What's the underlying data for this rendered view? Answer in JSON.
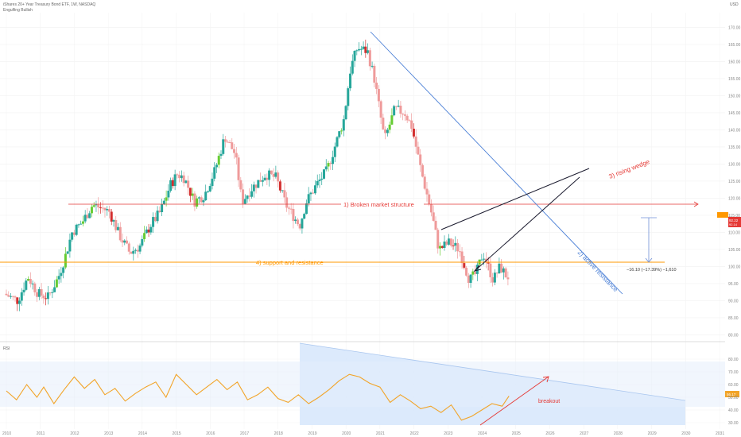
{
  "header": {
    "symbol_line": "iShares 20+ Year Treasury Bond ETF, 1W, NASDAQ",
    "indicator_line": "Engulfing Bullish",
    "currency": "USD"
  },
  "price_badge": "92.22",
  "price_badge_sub": "92.14",
  "rsi_label": "RSI",
  "rsi_badge": "56.17",
  "annotations": {
    "broken_structure": "1) Broken market structure",
    "active_resistance": "2) active resistance",
    "rising_wedge": "3) rising wedge",
    "support_resistance": "4) support and resistance",
    "measure": "−16.10 (−17.39%) −1,610",
    "breakout": "breakout"
  },
  "colors": {
    "bull": "#26a69a",
    "bull_light": "#8fd6b2",
    "bull_green": "#66cc33",
    "bear": "#ef9a9a",
    "bear_strong": "#d32f2f",
    "rsi_line": "#f2a428",
    "broken_structure": "#e53935",
    "support": "#ff9800",
    "resistance": "#4a7fd6",
    "wedge": "#1a1a2e",
    "channel_fill": "#d6e6fb",
    "measure": "#6f8fd6",
    "breakout": "#e53935"
  },
  "chart_data": [
    {
      "type": "candlestick",
      "title": "",
      "x_range": [
        2010.0,
        2031.0
      ],
      "x_ticks": [
        "2010",
        "2011",
        "2012",
        "2013",
        "2014",
        "2015",
        "2016",
        "2017",
        "2018",
        "2019",
        "2020",
        "2021",
        "2022",
        "2023",
        "2024",
        "2025",
        "2026",
        "2027",
        "2028",
        "2029",
        "2030",
        "2031"
      ],
      "y_range": [
        78,
        178
      ],
      "y_ticks": [
        "80.00",
        "85.00",
        "90.00",
        "95.00",
        "100.00",
        "105.00",
        "110.00",
        "115.00",
        "120.00",
        "125.00",
        "130.00",
        "135.00",
        "140.00",
        "145.00",
        "150.00",
        "155.00",
        "160.00",
        "165.00",
        "170.00",
        "175.00"
      ],
      "series_close": [
        [
          2010.0,
          92
        ],
        [
          2010.4,
          90
        ],
        [
          2010.7,
          97
        ],
        [
          2011.0,
          92
        ],
        [
          2011.3,
          91
        ],
        [
          2011.6,
          97
        ],
        [
          2011.8,
          103
        ],
        [
          2012.0,
          110
        ],
        [
          2012.3,
          113
        ],
        [
          2012.6,
          118
        ],
        [
          2012.9,
          117
        ],
        [
          2013.1,
          116
        ],
        [
          2013.4,
          109
        ],
        [
          2013.7,
          104
        ],
        [
          2014.0,
          106
        ],
        [
          2014.3,
          112
        ],
        [
          2014.6,
          116
        ],
        [
          2014.9,
          124
        ],
        [
          2015.1,
          127
        ],
        [
          2015.3,
          126
        ],
        [
          2015.6,
          119
        ],
        [
          2015.9,
          121
        ],
        [
          2016.2,
          128
        ],
        [
          2016.5,
          138
        ],
        [
          2016.8,
          133
        ],
        [
          2017.0,
          119
        ],
        [
          2017.3,
          123
        ],
        [
          2017.7,
          127
        ],
        [
          2018.0,
          126
        ],
        [
          2018.3,
          118
        ],
        [
          2018.7,
          112
        ],
        [
          2018.9,
          119
        ],
        [
          2019.2,
          124
        ],
        [
          2019.5,
          128
        ],
        [
          2019.8,
          137
        ],
        [
          2020.0,
          143
        ],
        [
          2020.2,
          158
        ],
        [
          2020.4,
          164
        ],
        [
          2020.7,
          163
        ],
        [
          2020.9,
          155
        ],
        [
          2021.2,
          137
        ],
        [
          2021.5,
          146
        ],
        [
          2021.8,
          145
        ],
        [
          2022.0,
          141
        ],
        [
          2022.3,
          127
        ],
        [
          2022.6,
          115
        ],
        [
          2022.8,
          105
        ],
        [
          2023.1,
          107
        ],
        [
          2023.4,
          105
        ],
        [
          2023.7,
          96
        ],
        [
          2023.9,
          98
        ],
        [
          2024.1,
          104
        ],
        [
          2024.4,
          96
        ],
        [
          2024.6,
          100
        ],
        [
          2024.8,
          97
        ]
      ],
      "support_level": 102.2,
      "broken_structure_level": 123.2,
      "measure_change": -16.1,
      "measure_percent": -17.39
    },
    {
      "type": "line",
      "title": "",
      "indicator": "RSI",
      "x_range": [
        2010.0,
        2031.0
      ],
      "y_range": [
        20,
        90
      ],
      "y_ticks": [
        "30.00",
        "40.00",
        "50.00",
        "60.00",
        "70.00",
        "80.00"
      ],
      "x": [
        2010.0,
        2010.3,
        2010.6,
        2010.9,
        2011.1,
        2011.4,
        2011.7,
        2012.0,
        2012.3,
        2012.6,
        2012.9,
        2013.2,
        2013.5,
        2013.8,
        2014.1,
        2014.4,
        2014.7,
        2015.0,
        2015.3,
        2015.6,
        2015.9,
        2016.2,
        2016.5,
        2016.8,
        2017.1,
        2017.4,
        2017.7,
        2018.0,
        2018.3,
        2018.6,
        2018.9,
        2019.2,
        2019.5,
        2019.8,
        2020.1,
        2020.4,
        2020.7,
        2021.0,
        2021.3,
        2021.6,
        2021.9,
        2022.2,
        2022.5,
        2022.8,
        2023.1,
        2023.4,
        2023.7,
        2024.0,
        2024.3,
        2024.6,
        2024.8
      ],
      "values": [
        55,
        48,
        60,
        50,
        58,
        45,
        56,
        66,
        57,
        64,
        52,
        57,
        47,
        53,
        58,
        62,
        50,
        68,
        60,
        52,
        58,
        64,
        56,
        62,
        48,
        52,
        58,
        49,
        46,
        52,
        45,
        50,
        56,
        63,
        68,
        66,
        61,
        58,
        46,
        52,
        47,
        41,
        43,
        38,
        44,
        32,
        35,
        40,
        45,
        43,
        51
      ]
    }
  ]
}
